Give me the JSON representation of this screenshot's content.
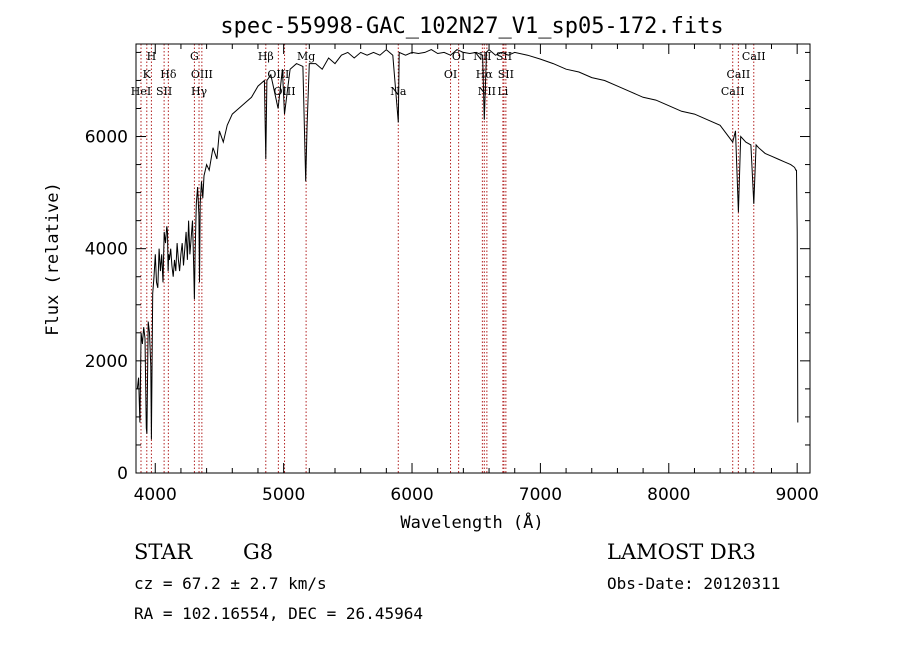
{
  "chart_data": {
    "type": "line",
    "title": "spec-55998-GAC_102N27_V1_sp05-172.fits",
    "xlabel": "Wavelength (Å)",
    "ylabel": "Flux (relative)",
    "xlim": [
      3850,
      9100
    ],
    "ylim": [
      0,
      7650
    ],
    "x_ticks": [
      4000,
      5000,
      6000,
      7000,
      8000,
      9000
    ],
    "y_ticks": [
      0,
      2000,
      4000,
      6000
    ],
    "grid": false,
    "series": [
      {
        "x": [
          3860,
          3870,
          3880,
          3890,
          3900,
          3910,
          3920,
          3930,
          3935,
          3945,
          3955,
          3965,
          3970,
          3980,
          3990,
          4000,
          4010,
          4020,
          4030,
          4040,
          4050,
          4060,
          4070,
          4080,
          4090,
          4095,
          4100,
          4105,
          4110,
          4120,
          4130,
          4140,
          4150,
          4160,
          4170,
          4180,
          4190,
          4200,
          4210,
          4220,
          4230,
          4240,
          4250,
          4260,
          4270,
          4280,
          4290,
          4300,
          4305,
          4310,
          4320,
          4330,
          4340,
          4345,
          4350,
          4360,
          4370,
          4380,
          4400,
          4420,
          4450,
          4480,
          4500,
          4530,
          4560,
          4600,
          4650,
          4700,
          4750,
          4800,
          4850,
          4861,
          4870,
          4900,
          4957,
          4990,
          5007,
          5050,
          5100,
          5150,
          5172,
          5183,
          5200,
          5250,
          5300,
          5350,
          5400,
          5450,
          5500,
          5550,
          5600,
          5650,
          5700,
          5750,
          5800,
          5850,
          5893,
          5900,
          5950,
          6000,
          6050,
          6100,
          6150,
          6200,
          6250,
          6300,
          6350,
          6400,
          6450,
          6500,
          6550,
          6563,
          6580,
          6600,
          6650,
          6700,
          6750,
          6800,
          6900,
          7000,
          7100,
          7200,
          7300,
          7400,
          7500,
          7600,
          7700,
          7800,
          7900,
          8000,
          8100,
          8200,
          8300,
          8400,
          8498,
          8520,
          8542,
          8560,
          8600,
          8640,
          8662,
          8680,
          8700,
          8750,
          8800,
          8850,
          8900,
          8950,
          8980,
          8990,
          8995,
          9000,
          9005
        ],
        "y": [
          1500,
          1700,
          900,
          2500,
          2300,
          2600,
          2400,
          800,
          700,
          2700,
          2500,
          1900,
          600,
          3200,
          3500,
          3900,
          3400,
          3300,
          4000,
          3600,
          3900,
          3400,
          4300,
          4100,
          4400,
          4300,
          3600,
          3900,
          3800,
          4000,
          3700,
          3500,
          3800,
          3600,
          4100,
          3800,
          3600,
          3900,
          4100,
          3700,
          4000,
          4300,
          3800,
          4500,
          3900,
          4200,
          4500,
          3600,
          3100,
          3900,
          4800,
          5100,
          4600,
          3400,
          4800,
          5200,
          4900,
          5300,
          5500,
          5400,
          5800,
          5600,
          6100,
          5900,
          6200,
          6400,
          6500,
          6600,
          6700,
          6900,
          7000,
          5600,
          7000,
          7100,
          6500,
          7200,
          6400,
          7200,
          7300,
          7250,
          5200,
          6200,
          7300,
          7300,
          7200,
          7400,
          7300,
          7450,
          7500,
          7400,
          7500,
          7450,
          7500,
          7450,
          7550,
          7450,
          6250,
          7500,
          7450,
          7500,
          7480,
          7500,
          7550,
          7480,
          7500,
          7450,
          7550,
          7500,
          7480,
          7500,
          7450,
          6300,
          7500,
          7550,
          7450,
          7500,
          7450,
          7500,
          7450,
          7380,
          7300,
          7200,
          7150,
          7050,
          7000,
          6900,
          6800,
          6700,
          6650,
          6550,
          6450,
          6400,
          6300,
          6200,
          5900,
          6100,
          4650,
          6000,
          5900,
          5850,
          4800,
          5850,
          5800,
          5700,
          5650,
          5600,
          5550,
          5500,
          5450,
          5400,
          5400,
          4300,
          900
        ]
      }
    ],
    "line_markers": [
      {
        "label": "H",
        "x": 3970,
        "row": 0
      },
      {
        "label": "K",
        "x": 3934,
        "row": 1
      },
      {
        "label": "HeI",
        "x": 3889,
        "row": 2
      },
      {
        "label": "SII",
        "x": 4069,
        "row": 2
      },
      {
        "label": "Hδ",
        "x": 4102,
        "row": 1
      },
      {
        "label": "G",
        "x": 4305,
        "row": 0
      },
      {
        "label": "OIII",
        "x": 4363,
        "row": 1
      },
      {
        "label": "Hγ",
        "x": 4341,
        "row": 2
      },
      {
        "label": "Hβ",
        "x": 4861,
        "row": 0
      },
      {
        "label": "OIII",
        "x": 4959,
        "row": 1
      },
      {
        "label": "OIII",
        "x": 5007,
        "row": 2
      },
      {
        "label": "Mg",
        "x": 5175,
        "row": 0
      },
      {
        "label": "Na",
        "x": 5893,
        "row": 2
      },
      {
        "label": "OI",
        "x": 6300,
        "row": 1
      },
      {
        "label": "OI",
        "x": 6363,
        "row": 0
      },
      {
        "label": "NII",
        "x": 6548,
        "row": 0
      },
      {
        "label": "NII",
        "x": 6583,
        "row": 2
      },
      {
        "label": "Hα",
        "x": 6563,
        "row": 1
      },
      {
        "label": "SII",
        "x": 6716,
        "row": 0
      },
      {
        "label": "SII",
        "x": 6731,
        "row": 1
      },
      {
        "label": "Li",
        "x": 6708,
        "row": 2
      },
      {
        "label": "CaII",
        "x": 8498,
        "row": 2
      },
      {
        "label": "CaII",
        "x": 8542,
        "row": 1
      },
      {
        "label": "CaII",
        "x": 8662,
        "row": 0
      }
    ]
  },
  "info": {
    "class_label": "STAR",
    "subclass_label": "G8",
    "survey": "LAMOST DR3",
    "cz": "cz = 67.2 ± 2.7 km/s",
    "obs_date": "Obs-Date: 20120311",
    "coords": "RA = 102.16554, DEC =  26.45964"
  },
  "colors": {
    "spectrum": "#000000",
    "marker_lines": "#b22222",
    "axes": "#000000"
  }
}
